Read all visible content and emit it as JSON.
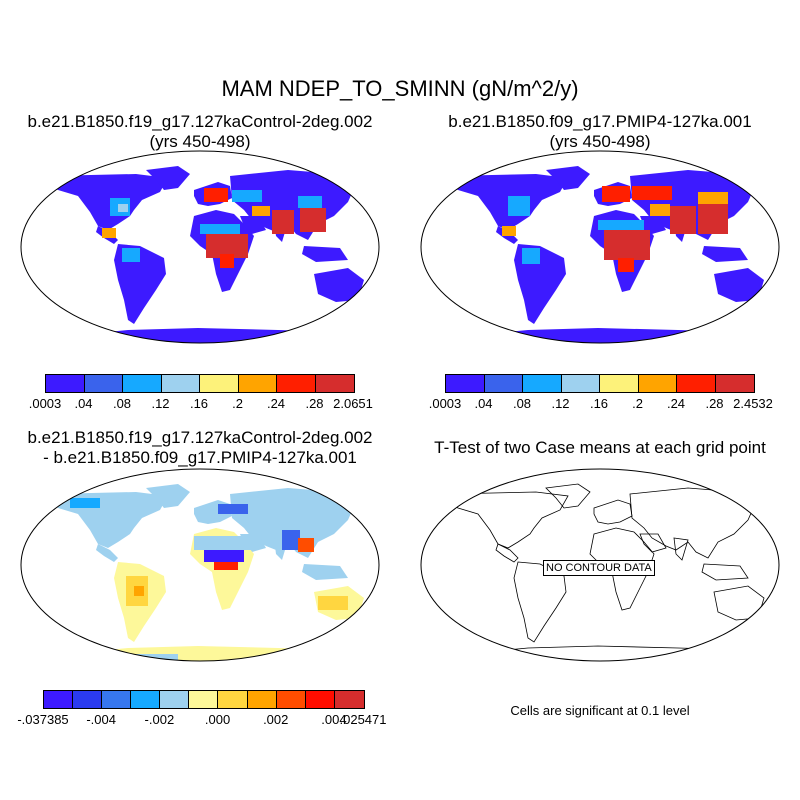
{
  "title": "MAM NDEP_TO_SMINN (gN/m^2/y)",
  "panels": [
    {
      "line1": "b.e21.B1850.f19_g17.127kaControl-2deg.002",
      "line2": "(yrs 450-498)"
    },
    {
      "line1": "b.e21.B1850.f09_g17.PMIP4-127ka.001",
      "line2": "(yrs 450-498)"
    },
    {
      "line1": "b.e21.B1850.f19_g17.127kaControl-2deg.002",
      "line2": "- b.e21.B1850.f09_g17.PMIP4-127ka.001"
    },
    {
      "line1": "T-Test of two Case means at each grid point"
    }
  ],
  "colorbars": [
    {
      "colors": [
        "#3d1aff",
        "#3a63ec",
        "#16a9ff",
        "#9ed1ef",
        "#fdf27a",
        "#ffa400",
        "#ff1f00",
        "#d62d2d"
      ],
      "labels": [
        ".0003",
        ".04",
        ".08",
        ".12",
        ".16",
        ".2",
        ".24",
        ".28",
        "2.0651"
      ]
    },
    {
      "colors": [
        "#3d1aff",
        "#3a63ec",
        "#16a9ff",
        "#9ed1ef",
        "#fdf27a",
        "#ffa400",
        "#ff1f00",
        "#d62d2d"
      ],
      "labels": [
        ".0003",
        ".04",
        ".08",
        ".12",
        ".16",
        ".2",
        ".24",
        ".28",
        "2.4532"
      ]
    },
    {
      "colors": [
        "#3d1aff",
        "#2b3bf0",
        "#3777ef",
        "#16a9ff",
        "#9ed1ef",
        "#fdf89a",
        "#ffd640",
        "#ffa400",
        "#ff4d00",
        "#ff0d00",
        "#d62d2d"
      ],
      "labels": [
        "-.037385",
        "-.004",
        "-.002",
        ".000",
        ".002",
        ".004",
        ".025471"
      ]
    }
  ],
  "no_data": "NO CONTOUR DATA",
  "significance_note": "Cells are significant at 0.1 level"
}
